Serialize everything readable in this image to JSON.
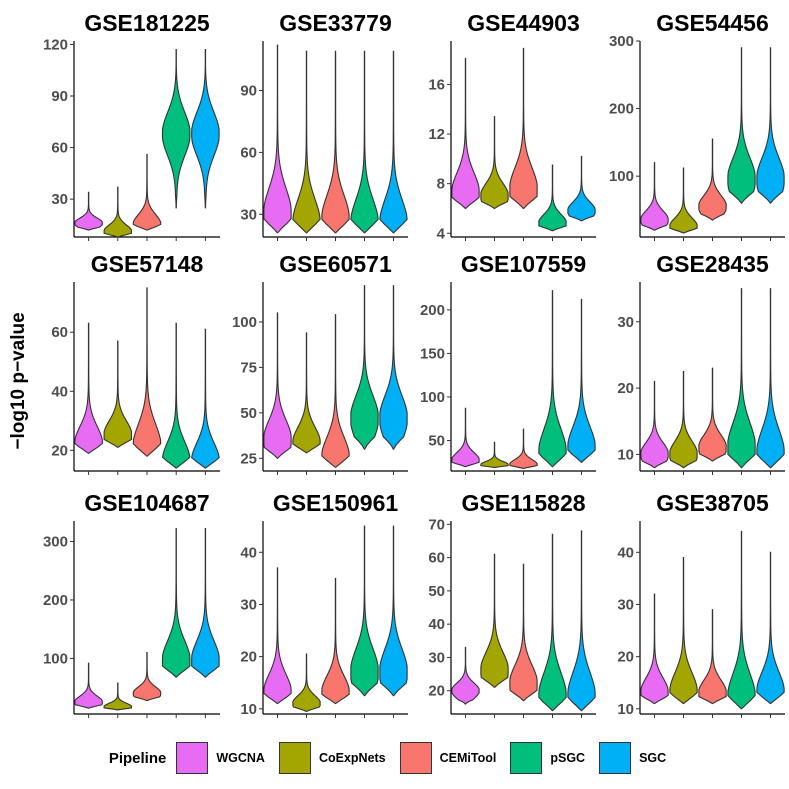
{
  "y_axis_label": "−log10 p−value",
  "legend": {
    "title": "Pipeline",
    "items": [
      {
        "name": "WGCNA",
        "color": "#E76BF3"
      },
      {
        "name": "CoExpNets",
        "color": "#A3A500"
      },
      {
        "name": "CEMiTool",
        "color": "#F8766D"
      },
      {
        "name": "pSGC",
        "color": "#00BF7D"
      },
      {
        "name": "SGC",
        "color": "#00B0F6"
      }
    ]
  },
  "chart_data": [
    {
      "type": "violin",
      "title": "GSE181225",
      "ylim": [
        8,
        122
      ],
      "yticks": [
        30,
        60,
        90,
        120
      ],
      "series": [
        {
          "name": "WGCNA",
          "min": 12,
          "max": 34,
          "mode": 16
        },
        {
          "name": "CoExpNets",
          "min": 8,
          "max": 37,
          "mode": 11
        },
        {
          "name": "CEMiTool",
          "min": 12,
          "max": 56,
          "mode": 15
        },
        {
          "name": "pSGC",
          "min": 25,
          "max": 117,
          "mode": 68
        },
        {
          "name": "SGC",
          "min": 25,
          "max": 117,
          "mode": 68
        }
      ]
    },
    {
      "type": "violin",
      "title": "GSE33779",
      "ylim": [
        19,
        114
      ],
      "yticks": [
        30,
        60,
        90
      ],
      "series": [
        {
          "name": "WGCNA",
          "min": 21,
          "max": 112,
          "mode": 30
        },
        {
          "name": "CoExpNets",
          "min": 21,
          "max": 109,
          "mode": 25
        },
        {
          "name": "CEMiTool",
          "min": 21,
          "max": 109,
          "mode": 27
        },
        {
          "name": "pSGC",
          "min": 21,
          "max": 109,
          "mode": 25
        },
        {
          "name": "SGC",
          "min": 21,
          "max": 109,
          "mode": 25
        }
      ]
    },
    {
      "type": "violin",
      "title": "GSE44903",
      "ylim": [
        3.7,
        19.5
      ],
      "yticks": [
        4,
        8,
        12,
        16
      ],
      "series": [
        {
          "name": "WGCNA",
          "min": 6.0,
          "max": 18.1,
          "mode": 7.2
        },
        {
          "name": "CoExpNets",
          "min": 6.0,
          "max": 13.4,
          "mode": 7.0
        },
        {
          "name": "CEMiTool",
          "min": 6.0,
          "max": 18.9,
          "mode": 7.5
        },
        {
          "name": "pSGC",
          "min": 4.2,
          "max": 9.5,
          "mode": 4.8
        },
        {
          "name": "SGC",
          "min": 5.0,
          "max": 10.2,
          "mode": 5.8
        }
      ]
    },
    {
      "type": "violin",
      "title": "GSE54456",
      "ylim": [
        10,
        300
      ],
      "yticks": [
        100,
        200,
        300
      ],
      "series": [
        {
          "name": "WGCNA",
          "min": 20,
          "max": 120,
          "mode": 35
        },
        {
          "name": "CoExpNets",
          "min": 16,
          "max": 112,
          "mode": 25
        },
        {
          "name": "CEMiTool",
          "min": 35,
          "max": 155,
          "mode": 55
        },
        {
          "name": "pSGC",
          "min": 60,
          "max": 290,
          "mode": 95
        },
        {
          "name": "SGC",
          "min": 60,
          "max": 290,
          "mode": 95
        }
      ]
    },
    {
      "type": "violin",
      "title": "GSE57148",
      "ylim": [
        13,
        77
      ],
      "yticks": [
        20,
        40,
        60
      ],
      "series": [
        {
          "name": "WGCNA",
          "min": 19,
          "max": 63,
          "mode": 22
        },
        {
          "name": "CoExpNets",
          "min": 21,
          "max": 57,
          "mode": 25
        },
        {
          "name": "CEMiTool",
          "min": 18,
          "max": 75,
          "mode": 21
        },
        {
          "name": "pSGC",
          "min": 14,
          "max": 63,
          "mode": 16
        },
        {
          "name": "SGC",
          "min": 14,
          "max": 61,
          "mode": 16
        }
      ]
    },
    {
      "type": "violin",
      "title": "GSE60571",
      "ylim": [
        18,
        122
      ],
      "yticks": [
        25,
        50,
        75,
        100
      ],
      "series": [
        {
          "name": "WGCNA",
          "min": 25,
          "max": 105,
          "mode": 35
        },
        {
          "name": "CoExpNets",
          "min": 28,
          "max": 94,
          "mode": 33
        },
        {
          "name": "CEMiTool",
          "min": 20,
          "max": 104,
          "mode": 25
        },
        {
          "name": "pSGC",
          "min": 30,
          "max": 120,
          "mode": 47
        },
        {
          "name": "SGC",
          "min": 30,
          "max": 120,
          "mode": 47
        }
      ]
    },
    {
      "type": "violin",
      "title": "GSE107559",
      "ylim": [
        15,
        232
      ],
      "yticks": [
        50,
        100,
        150,
        200
      ],
      "series": [
        {
          "name": "WGCNA",
          "min": 20,
          "max": 87,
          "mode": 27
        },
        {
          "name": "CoExpNets",
          "min": 19,
          "max": 48,
          "mode": 22
        },
        {
          "name": "CEMiTool",
          "min": 18,
          "max": 63,
          "mode": 22
        },
        {
          "name": "pSGC",
          "min": 20,
          "max": 222,
          "mode": 35
        },
        {
          "name": "SGC",
          "min": 25,
          "max": 212,
          "mode": 40
        }
      ]
    },
    {
      "type": "violin",
      "title": "GSE28435",
      "ylim": [
        7.5,
        36
      ],
      "yticks": [
        10,
        20,
        30
      ],
      "series": [
        {
          "name": "WGCNA",
          "min": 8,
          "max": 21,
          "mode": 10
        },
        {
          "name": "CoExpNets",
          "min": 8,
          "max": 22.5,
          "mode": 10
        },
        {
          "name": "CEMiTool",
          "min": 9,
          "max": 23,
          "mode": 11
        },
        {
          "name": "pSGC",
          "min": 8,
          "max": 35,
          "mode": 11
        },
        {
          "name": "SGC",
          "min": 8,
          "max": 35,
          "mode": 10
        }
      ]
    },
    {
      "type": "violin",
      "title": "GSE104687",
      "ylim": [
        5,
        335
      ],
      "yticks": [
        100,
        200,
        300
      ],
      "series": [
        {
          "name": "WGCNA",
          "min": 15,
          "max": 92,
          "mode": 25
        },
        {
          "name": "CoExpNets",
          "min": 12,
          "max": 58,
          "mode": 17
        },
        {
          "name": "CEMiTool",
          "min": 28,
          "max": 110,
          "mode": 40
        },
        {
          "name": "pSGC",
          "min": 68,
          "max": 322,
          "mode": 95
        },
        {
          "name": "SGC",
          "min": 68,
          "max": 322,
          "mode": 95
        }
      ]
    },
    {
      "type": "violin",
      "title": "GSE150961",
      "ylim": [
        9,
        46
      ],
      "yticks": [
        10,
        20,
        30,
        40
      ],
      "series": [
        {
          "name": "WGCNA",
          "min": 11,
          "max": 37,
          "mode": 13
        },
        {
          "name": "CoExpNets",
          "min": 9.5,
          "max": 20.5,
          "mode": 11
        },
        {
          "name": "CEMiTool",
          "min": 11,
          "max": 35,
          "mode": 13
        },
        {
          "name": "pSGC",
          "min": 12.5,
          "max": 45,
          "mode": 17
        },
        {
          "name": "SGC",
          "min": 12.5,
          "max": 45,
          "mode": 17
        }
      ]
    },
    {
      "type": "violin",
      "title": "GSE115828",
      "ylim": [
        13,
        71
      ],
      "yticks": [
        20,
        30,
        40,
        50,
        60,
        70
      ],
      "series": [
        {
          "name": "WGCNA",
          "min": 16,
          "max": 33,
          "mode": 20
        },
        {
          "name": "CoExpNets",
          "min": 21,
          "max": 61,
          "mode": 26
        },
        {
          "name": "CEMiTool",
          "min": 17,
          "max": 58,
          "mode": 22
        },
        {
          "name": "pSGC",
          "min": 14,
          "max": 67,
          "mode": 18
        },
        {
          "name": "SGC",
          "min": 14,
          "max": 68,
          "mode": 18
        }
      ]
    },
    {
      "type": "violin",
      "title": "GSE38705",
      "ylim": [
        9,
        46
      ],
      "yticks": [
        10,
        20,
        30,
        40
      ],
      "series": [
        {
          "name": "WGCNA",
          "min": 11,
          "max": 32,
          "mode": 13
        },
        {
          "name": "CoExpNets",
          "min": 11,
          "max": 39,
          "mode": 13
        },
        {
          "name": "CEMiTool",
          "min": 11,
          "max": 29,
          "mode": 13
        },
        {
          "name": "pSGC",
          "min": 10,
          "max": 44,
          "mode": 12
        },
        {
          "name": "SGC",
          "min": 11,
          "max": 40,
          "mode": 13
        }
      ]
    }
  ]
}
